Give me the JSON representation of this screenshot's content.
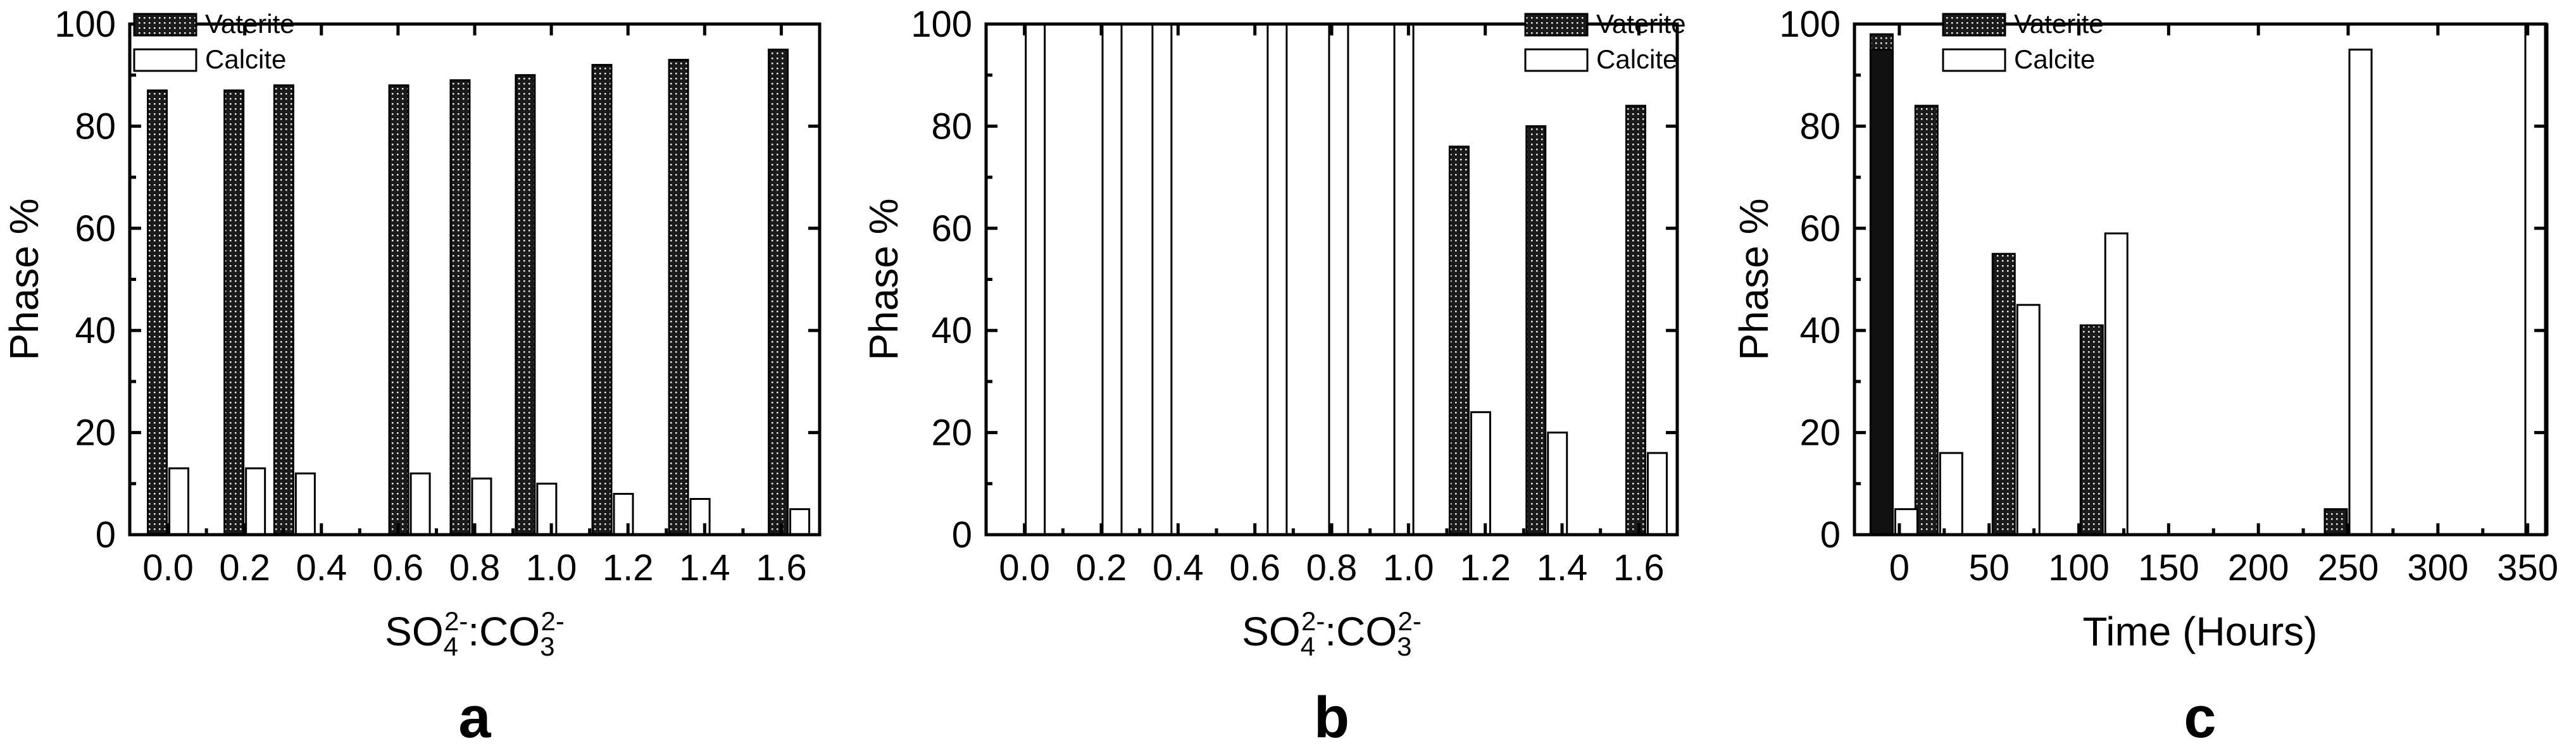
{
  "chart_data": [
    {
      "type": "bar",
      "panel_label": "a",
      "ylabel": "Phase %",
      "xlabel_parts": {
        "a": "SO",
        "a_sub": "4",
        "a_sup": "2-",
        "sep": ":CO",
        "b_sub": "3",
        "b_sup": "2-"
      },
      "xlim": [
        -0.1,
        1.7
      ],
      "ylim": [
        0,
        100
      ],
      "x_ticks": [
        0.0,
        0.2,
        0.4,
        0.6,
        0.8,
        1.0,
        1.2,
        1.4,
        1.6
      ],
      "x_tick_labels": [
        "0.0",
        "0.2",
        "0.4",
        "0.6",
        "0.8",
        "1.0",
        "1.2",
        "1.4",
        "1.6"
      ],
      "y_ticks": [
        0,
        20,
        40,
        60,
        80,
        100
      ],
      "y_tick_labels": [
        "0",
        "20",
        "40",
        "60",
        "80",
        "100"
      ],
      "legend_position": "top-left",
      "x": [
        0.0,
        0.2,
        0.33,
        0.63,
        0.79,
        0.96,
        1.16,
        1.36,
        1.62
      ],
      "series": [
        {
          "name": "Vaterite",
          "style": "dotted",
          "values": [
            87,
            87,
            88,
            88,
            89,
            90,
            92,
            93,
            95
          ]
        },
        {
          "name": "Calcite",
          "style": "open",
          "values": [
            13,
            13,
            12,
            12,
            11,
            10,
            8,
            7,
            5
          ]
        }
      ]
    },
    {
      "type": "bar",
      "panel_label": "b",
      "ylabel": "Phase %",
      "xlabel_parts": {
        "a": "SO",
        "a_sub": "4",
        "a_sup": "2-",
        "sep": ":CO",
        "b_sub": "3",
        "b_sup": "2-"
      },
      "xlim": [
        -0.1,
        1.7
      ],
      "ylim": [
        0,
        100
      ],
      "x_ticks": [
        0.0,
        0.2,
        0.4,
        0.6,
        0.8,
        1.0,
        1.2,
        1.4,
        1.6
      ],
      "x_tick_labels": [
        "0.0",
        "0.2",
        "0.4",
        "0.6",
        "0.8",
        "1.0",
        "1.2",
        "1.4",
        "1.6"
      ],
      "y_ticks": [
        0,
        20,
        40,
        60,
        80,
        100
      ],
      "y_tick_labels": [
        "0",
        "20",
        "40",
        "60",
        "80",
        "100"
      ],
      "legend_position": "top-right",
      "x": [
        0.0,
        0.2,
        0.33,
        0.63,
        0.79,
        0.96,
        1.16,
        1.36,
        1.62
      ],
      "series": [
        {
          "name": "Vaterite",
          "style": "dotted",
          "values": [
            0,
            0,
            0,
            0,
            0,
            0,
            76,
            80,
            84
          ]
        },
        {
          "name": "Calcite",
          "style": "open",
          "values": [
            100,
            100,
            100,
            100,
            100,
            100,
            24,
            20,
            16
          ]
        }
      ]
    },
    {
      "type": "bar",
      "panel_label": "c",
      "ylabel": "Phase %",
      "xlabel": "Time (Hours)",
      "xlim": [
        -25,
        360
      ],
      "ylim": [
        0,
        100
      ],
      "x_ticks": [
        0,
        50,
        100,
        150,
        200,
        250,
        300,
        350
      ],
      "x_tick_labels": [
        "0",
        "50",
        "100",
        "150",
        "200",
        "250",
        "300",
        "350"
      ],
      "y_ticks": [
        0,
        20,
        40,
        60,
        80,
        100
      ],
      "y_tick_labels": [
        "0",
        "20",
        "40",
        "60",
        "80",
        "100"
      ],
      "legend_position": "top-left",
      "x": [
        -3,
        22,
        65,
        114,
        250,
        348
      ],
      "series": [
        {
          "name": "Vaterite",
          "style": "dotted",
          "values": [
            98,
            84,
            55,
            41,
            5,
            0
          ]
        },
        {
          "name": "Calcite",
          "style": "open",
          "values": [
            5,
            16,
            45,
            59,
            95,
            100
          ]
        }
      ],
      "extra_bar": {
        "x": -3,
        "value": 95,
        "style": "solid"
      }
    }
  ]
}
